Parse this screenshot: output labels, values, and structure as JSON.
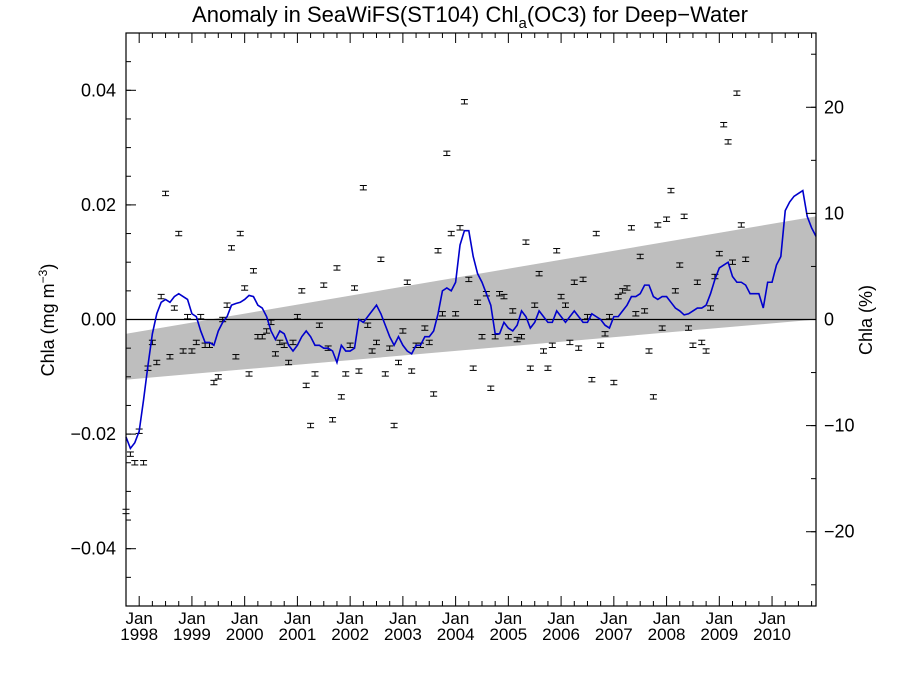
{
  "chart_data": {
    "type": "scatter",
    "title_main": "Anomaly in SeaWiFS(ST104) Chl",
    "title_sub": "a",
    "title_rest": "(OC3) for Deep−Water",
    "ylabel_left_main": "Chla (mg m",
    "ylabel_left_sup": "−3",
    "ylabel_left_close": ")",
    "ylabel_right": "Chla (%)",
    "xlim": [
      "1997-10",
      "2010-11"
    ],
    "ylim": [
      -0.05,
      0.05
    ],
    "ylim_right": [
      -27,
      27
    ],
    "grid": false,
    "zero_line": true,
    "x_ticks": [
      {
        "month": "Jan",
        "year": "1998"
      },
      {
        "month": "Jan",
        "year": "1999"
      },
      {
        "month": "Jan",
        "year": "2000"
      },
      {
        "month": "Jan",
        "year": "2001"
      },
      {
        "month": "Jan",
        "year": "2002"
      },
      {
        "month": "Jan",
        "year": "2003"
      },
      {
        "month": "Jan",
        "year": "2004"
      },
      {
        "month": "Jan",
        "year": "2005"
      },
      {
        "month": "Jan",
        "year": "2006"
      },
      {
        "month": "Jan",
        "year": "2007"
      },
      {
        "month": "Jan",
        "year": "2008"
      },
      {
        "month": "Jan",
        "year": "2009"
      },
      {
        "month": "Jan",
        "year": "2010"
      }
    ],
    "y_ticks_left": [
      {
        "value": -0.04,
        "label": "−0.04"
      },
      {
        "value": -0.02,
        "label": "−0.02"
      },
      {
        "value": 0.0,
        "label": "0.00"
      },
      {
        "value": 0.02,
        "label": "0.02"
      },
      {
        "value": 0.04,
        "label": "0.04"
      }
    ],
    "y_ticks_right": [
      {
        "value": -20,
        "label": "−20"
      },
      {
        "value": -10,
        "label": "−10"
      },
      {
        "value": 0,
        "label": "0"
      },
      {
        "value": 10,
        "label": "10"
      },
      {
        "value": 20,
        "label": "20"
      }
    ],
    "trend_band": {
      "color": "#bebebe",
      "x": [
        "1997-10",
        "2010-11"
      ],
      "upper": [
        -0.0025,
        0.018
      ],
      "lower": [
        -0.0105,
        0.0
      ]
    },
    "smoothed_line": {
      "color": "#0000cc",
      "points": [
        [
          "1997-10",
          -0.0205
        ],
        [
          "1997-11",
          -0.0225
        ],
        [
          "1997-12",
          -0.0215
        ],
        [
          "1998-01",
          -0.0195
        ],
        [
          "1998-02",
          -0.014
        ],
        [
          "1998-03",
          -0.008
        ],
        [
          "1998-04",
          -0.0025
        ],
        [
          "1998-05",
          0.001
        ],
        [
          "1998-06",
          0.003
        ],
        [
          "1998-07",
          0.0035
        ],
        [
          "1998-08",
          0.003
        ],
        [
          "1998-09",
          0.004
        ],
        [
          "1998-10",
          0.0045
        ],
        [
          "1998-11",
          0.004
        ],
        [
          "1998-12",
          0.0035
        ],
        [
          "1999-01",
          0.001
        ],
        [
          "1999-02",
          0.0005
        ],
        [
          "1999-03",
          -0.002
        ],
        [
          "1999-04",
          -0.004
        ],
        [
          "1999-05",
          -0.004
        ],
        [
          "1999-06",
          -0.0045
        ],
        [
          "1999-07",
          -0.002
        ],
        [
          "1999-08",
          -0.0005
        ],
        [
          "1999-09",
          0.0005
        ],
        [
          "1999-10",
          0.0025
        ],
        [
          "1999-11",
          0.0028
        ],
        [
          "1999-12",
          0.003
        ],
        [
          "2000-01",
          0.0035
        ],
        [
          "2000-02",
          0.0042
        ],
        [
          "2000-03",
          0.004
        ],
        [
          "2000-04",
          0.0025
        ],
        [
          "2000-05",
          0.002
        ],
        [
          "2000-06",
          0.0005
        ],
        [
          "2000-07",
          -0.002
        ],
        [
          "2000-08",
          -0.0035
        ],
        [
          "2000-09",
          -0.002
        ],
        [
          "2000-10",
          -0.0025
        ],
        [
          "2000-11",
          -0.0045
        ],
        [
          "2000-12",
          -0.0055
        ],
        [
          "2001-01",
          -0.0045
        ],
        [
          "2001-02",
          -0.003
        ],
        [
          "2001-03",
          -0.002
        ],
        [
          "2001-04",
          -0.003
        ],
        [
          "2001-05",
          -0.0045
        ],
        [
          "2001-06",
          -0.0045
        ],
        [
          "2001-07",
          -0.005
        ],
        [
          "2001-08",
          -0.005
        ],
        [
          "2001-09",
          -0.0055
        ],
        [
          "2001-10",
          -0.0075
        ],
        [
          "2001-11",
          -0.0045
        ],
        [
          "2001-12",
          -0.0055
        ],
        [
          "2002-01",
          -0.0055
        ],
        [
          "2002-02",
          -0.005
        ],
        [
          "2002-03",
          0.0
        ],
        [
          "2002-04",
          -0.0005
        ],
        [
          "2002-05",
          0.0005
        ],
        [
          "2002-06",
          0.0015
        ],
        [
          "2002-07",
          0.0025
        ],
        [
          "2002-08",
          0.001
        ],
        [
          "2002-09",
          -0.001
        ],
        [
          "2002-10",
          -0.003
        ],
        [
          "2002-11",
          -0.0045
        ],
        [
          "2002-12",
          -0.003
        ],
        [
          "2003-01",
          -0.0045
        ],
        [
          "2003-02",
          -0.0055
        ],
        [
          "2003-03",
          -0.006
        ],
        [
          "2003-04",
          -0.0045
        ],
        [
          "2003-05",
          -0.0045
        ],
        [
          "2003-06",
          -0.003
        ],
        [
          "2003-07",
          -0.003
        ],
        [
          "2003-08",
          -0.002
        ],
        [
          "2003-09",
          0.001
        ],
        [
          "2003-10",
          0.005
        ],
        [
          "2003-11",
          0.0055
        ],
        [
          "2003-12",
          0.005
        ],
        [
          "2004-01",
          0.0065
        ],
        [
          "2004-02",
          0.013
        ],
        [
          "2004-03",
          0.0155
        ],
        [
          "2004-04",
          0.0155
        ],
        [
          "2004-05",
          0.011
        ],
        [
          "2004-06",
          0.008
        ],
        [
          "2004-07",
          0.0065
        ],
        [
          "2004-08",
          0.0045
        ],
        [
          "2004-09",
          0.0025
        ],
        [
          "2004-10",
          -0.0025
        ],
        [
          "2004-11",
          -0.0025
        ],
        [
          "2004-12",
          -0.0005
        ],
        [
          "2005-01",
          -0.0015
        ],
        [
          "2005-02",
          -0.002
        ],
        [
          "2005-03",
          -0.001
        ],
        [
          "2005-04",
          0.0015
        ],
        [
          "2005-05",
          0.0005
        ],
        [
          "2005-06",
          -0.0015
        ],
        [
          "2005-07",
          -0.0005
        ],
        [
          "2005-08",
          0.0015
        ],
        [
          "2005-09",
          0.0005
        ],
        [
          "2005-10",
          -0.0005
        ],
        [
          "2005-11",
          -0.0005
        ],
        [
          "2005-12",
          0.0015
        ],
        [
          "2006-01",
          0.0005
        ],
        [
          "2006-02",
          -0.0005
        ],
        [
          "2006-03",
          0.0005
        ],
        [
          "2006-04",
          0.0015
        ],
        [
          "2006-05",
          0.0005
        ],
        [
          "2006-06",
          -0.0005
        ],
        [
          "2006-07",
          -0.0005
        ],
        [
          "2006-08",
          0.001
        ],
        [
          "2006-09",
          0.0005
        ],
        [
          "2006-10",
          0.0
        ],
        [
          "2006-11",
          -0.001
        ],
        [
          "2006-12",
          -0.0015
        ],
        [
          "2007-01",
          0.0005
        ],
        [
          "2007-02",
          0.0005
        ],
        [
          "2007-03",
          0.0015
        ],
        [
          "2007-04",
          0.0025
        ],
        [
          "2007-05",
          0.004
        ],
        [
          "2007-06",
          0.004
        ],
        [
          "2007-07",
          0.0045
        ],
        [
          "2007-08",
          0.006
        ],
        [
          "2007-09",
          0.006
        ],
        [
          "2007-10",
          0.004
        ],
        [
          "2007-11",
          0.0035
        ],
        [
          "2007-12",
          0.004
        ],
        [
          "2008-01",
          0.004
        ],
        [
          "2008-02",
          0.003
        ],
        [
          "2008-03",
          0.002
        ],
        [
          "2008-04",
          0.0015
        ],
        [
          "2008-05",
          0.0008
        ],
        [
          "2008-06",
          0.001
        ],
        [
          "2008-07",
          0.0015
        ],
        [
          "2008-08",
          0.002
        ],
        [
          "2008-09",
          0.002
        ],
        [
          "2008-10",
          0.0025
        ],
        [
          "2008-11",
          0.0045
        ],
        [
          "2008-12",
          0.007
        ],
        [
          "2009-01",
          0.009
        ],
        [
          "2009-02",
          0.0095
        ],
        [
          "2009-03",
          0.01
        ],
        [
          "2009-04",
          0.0075
        ],
        [
          "2009-05",
          0.0065
        ],
        [
          "2009-06",
          0.0065
        ],
        [
          "2009-07",
          0.006
        ],
        [
          "2009-08",
          0.0045
        ],
        [
          "2009-09",
          0.0045
        ],
        [
          "2009-10",
          0.0045
        ],
        [
          "2009-11",
          0.002
        ],
        [
          "2009-12",
          0.0065
        ],
        [
          "2010-01",
          0.0065
        ],
        [
          "2010-02",
          0.0095
        ],
        [
          "2010-03",
          0.011
        ],
        [
          "2010-04",
          0.019
        ],
        [
          "2010-05",
          0.0205
        ],
        [
          "2010-06",
          0.0215
        ],
        [
          "2010-07",
          0.022
        ],
        [
          "2010-08",
          0.0225
        ],
        [
          "2010-09",
          0.018
        ],
        [
          "2010-10",
          0.016
        ],
        [
          "2010-11",
          0.0145
        ]
      ]
    },
    "monthly_points": [
      [
        "1997-10",
        -0.0335
      ],
      [
        "1997-11",
        -0.0235
      ],
      [
        "1997-12",
        -0.025
      ],
      [
        "1998-01",
        -0.0195
      ],
      [
        "1998-02",
        -0.025
      ],
      [
        "1998-03",
        -0.0085
      ],
      [
        "1998-04",
        -0.004
      ],
      [
        "1998-05",
        -0.0075
      ],
      [
        "1998-06",
        0.004
      ],
      [
        "1998-07",
        0.022
      ],
      [
        "1998-08",
        -0.0065
      ],
      [
        "1998-09",
        0.002
      ],
      [
        "1998-10",
        0.015
      ],
      [
        "1998-11",
        -0.0055
      ],
      [
        "1998-12",
        0.0005
      ],
      [
        "1999-01",
        -0.0055
      ],
      [
        "1999-02",
        -0.004
      ],
      [
        "1999-03",
        0.0005
      ],
      [
        "1999-04",
        -0.0045
      ],
      [
        "1999-05",
        -0.0045
      ],
      [
        "1999-06",
        -0.011
      ],
      [
        "1999-07",
        -0.01
      ],
      [
        "1999-08",
        0.0
      ],
      [
        "1999-09",
        0.0025
      ],
      [
        "1999-10",
        0.0125
      ],
      [
        "1999-11",
        -0.0065
      ],
      [
        "1999-12",
        0.015
      ],
      [
        "2000-01",
        0.0055
      ],
      [
        "2000-02",
        -0.0095
      ],
      [
        "2000-03",
        0.0085
      ],
      [
        "2000-04",
        -0.003
      ],
      [
        "2000-05",
        -0.003
      ],
      [
        "2000-06",
        -0.002
      ],
      [
        "2000-07",
        -0.0005
      ],
      [
        "2000-08",
        -0.006
      ],
      [
        "2000-09",
        -0.004
      ],
      [
        "2000-10",
        -0.0045
      ],
      [
        "2000-11",
        -0.0075
      ],
      [
        "2000-12",
        -0.004
      ],
      [
        "2001-01",
        0.0005
      ],
      [
        "2001-02",
        0.005
      ],
      [
        "2001-03",
        -0.0115
      ],
      [
        "2001-04",
        -0.0185
      ],
      [
        "2001-05",
        -0.0095
      ],
      [
        "2001-06",
        -0.001
      ],
      [
        "2001-07",
        0.006
      ],
      [
        "2001-08",
        -0.005
      ],
      [
        "2001-09",
        -0.0175
      ],
      [
        "2001-10",
        0.009
      ],
      [
        "2001-11",
        -0.0135
      ],
      [
        "2001-12",
        -0.0095
      ],
      [
        "2002-01",
        -0.0045
      ],
      [
        "2002-02",
        0.0055
      ],
      [
        "2002-03",
        -0.009
      ],
      [
        "2002-04",
        0.023
      ],
      [
        "2002-05",
        -0.001
      ],
      [
        "2002-06",
        -0.0055
      ],
      [
        "2002-07",
        -0.004
      ],
      [
        "2002-08",
        0.0105
      ],
      [
        "2002-09",
        -0.0095
      ],
      [
        "2002-10",
        -0.005
      ],
      [
        "2002-11",
        -0.0185
      ],
      [
        "2002-12",
        -0.0075
      ],
      [
        "2003-01",
        -0.002
      ],
      [
        "2003-02",
        0.0065
      ],
      [
        "2003-03",
        -0.009
      ],
      [
        "2003-04",
        -0.0045
      ],
      [
        "2003-05",
        -0.0045
      ],
      [
        "2003-06",
        -0.0015
      ],
      [
        "2003-07",
        -0.004
      ],
      [
        "2003-08",
        -0.013
      ],
      [
        "2003-09",
        0.012
      ],
      [
        "2003-10",
        0.001
      ],
      [
        "2003-11",
        0.029
      ],
      [
        "2003-12",
        0.015
      ],
      [
        "2004-01",
        0.001
      ],
      [
        "2004-02",
        0.016
      ],
      [
        "2004-03",
        0.038
      ],
      [
        "2004-04",
        0.007
      ],
      [
        "2004-05",
        -0.0085
      ],
      [
        "2004-06",
        0.003
      ],
      [
        "2004-07",
        -0.003
      ],
      [
        "2004-08",
        0.0045
      ],
      [
        "2004-09",
        -0.012
      ],
      [
        "2004-10",
        -0.003
      ],
      [
        "2004-11",
        0.0045
      ],
      [
        "2004-12",
        0.004
      ],
      [
        "2005-01",
        -0.003
      ],
      [
        "2005-02",
        0.0015
      ],
      [
        "2005-03",
        -0.0035
      ],
      [
        "2005-04",
        -0.003
      ],
      [
        "2005-05",
        0.0135
      ],
      [
        "2005-06",
        -0.0085
      ],
      [
        "2005-07",
        0.0025
      ],
      [
        "2005-08",
        0.008
      ],
      [
        "2005-09",
        -0.0055
      ],
      [
        "2005-10",
        -0.0085
      ],
      [
        "2005-11",
        -0.0045
      ],
      [
        "2005-12",
        0.012
      ],
      [
        "2006-01",
        0.004
      ],
      [
        "2006-02",
        0.0025
      ],
      [
        "2006-03",
        -0.004
      ],
      [
        "2006-04",
        0.0065
      ],
      [
        "2006-05",
        -0.005
      ],
      [
        "2006-06",
        0.007
      ],
      [
        "2006-07",
        0.0005
      ],
      [
        "2006-08",
        -0.0105
      ],
      [
        "2006-09",
        0.015
      ],
      [
        "2006-10",
        -0.0045
      ],
      [
        "2006-11",
        -0.0025
      ],
      [
        "2006-12",
        0.0005
      ],
      [
        "2007-01",
        -0.011
      ],
      [
        "2007-02",
        0.004
      ],
      [
        "2007-03",
        0.005
      ],
      [
        "2007-04",
        0.0055
      ],
      [
        "2007-05",
        0.016
      ],
      [
        "2007-06",
        0.001
      ],
      [
        "2007-07",
        0.011
      ],
      [
        "2007-08",
        0.0015
      ],
      [
        "2007-09",
        -0.0055
      ],
      [
        "2007-10",
        -0.0135
      ],
      [
        "2007-11",
        0.0165
      ],
      [
        "2007-12",
        -0.0015
      ],
      [
        "2008-01",
        0.0175
      ],
      [
        "2008-02",
        0.0225
      ],
      [
        "2008-03",
        0.005
      ],
      [
        "2008-04",
        0.0095
      ],
      [
        "2008-05",
        0.018
      ],
      [
        "2008-06",
        -0.0015
      ],
      [
        "2008-07",
        -0.0045
      ],
      [
        "2008-08",
        0.0065
      ],
      [
        "2008-09",
        -0.004
      ],
      [
        "2008-10",
        -0.0055
      ],
      [
        "2008-11",
        0.002
      ],
      [
        "2008-12",
        0.0075
      ],
      [
        "2009-01",
        0.0115
      ],
      [
        "2009-02",
        0.034
      ],
      [
        "2009-03",
        0.031
      ],
      [
        "2009-04",
        0.01
      ],
      [
        "2009-05",
        0.0395
      ],
      [
        "2009-06",
        0.0165
      ],
      [
        "2009-07",
        0.0105
      ]
    ]
  }
}
